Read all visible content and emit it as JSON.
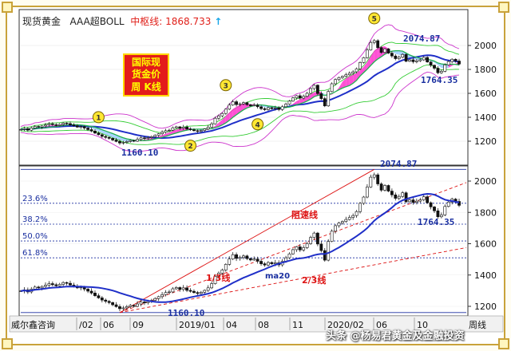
{
  "header": {
    "symbol": "现货黄金",
    "indicator": "AAA超BOLL",
    "center_label": "中枢线: 1868.733",
    "arrow": "↑"
  },
  "title_box": {
    "lines": [
      "国际现",
      "货金价",
      "周  K线"
    ]
  },
  "watermark": "头条 @杨易君黄金及金融投资",
  "chart_data": {
    "type": "candlestick",
    "xtick_labels": [
      "威尔鑫咨询",
      "/02",
      "06",
      "09",
      "2019/01",
      "04",
      "08",
      "11",
      "2020/02",
      "06",
      "10",
      "周线"
    ],
    "y_ticks_top": [
      1200,
      1400,
      1600,
      1800,
      2000
    ],
    "y_ticks_bottom": [
      1200,
      1400,
      1600,
      1800,
      2000
    ],
    "ylim": [
      1120,
      2120
    ],
    "extremes": {
      "high": 2074.87,
      "low": 1160.1,
      "recent_low": 1764.35
    },
    "high_label": "2074.87",
    "low_label": "1160.10",
    "recent_low_label": "1764.35",
    "wave_markers": [
      "1",
      "2",
      "3",
      "4",
      "5"
    ],
    "fib_levels": [
      {
        "label": "23.6%",
        "value": 1858.3
      },
      {
        "label": "38.2%",
        "value": 1724.7
      },
      {
        "label": "50.0%",
        "value": 1617.5
      },
      {
        "label": "61.8%",
        "value": 1509.8
      }
    ],
    "fan_labels": [
      "阻速线",
      "1/3线",
      "2/3线"
    ],
    "ma_label": "ma20",
    "series": [
      {
        "name": "weekly_close",
        "values": [
          1298,
          1305,
          1292,
          1310,
          1323,
          1318,
          1327,
          1335,
          1345,
          1338,
          1331,
          1340,
          1352,
          1347,
          1336,
          1329,
          1318,
          1322,
          1310,
          1297,
          1285,
          1268,
          1254,
          1240,
          1232,
          1224,
          1210,
          1198,
          1185,
          1190,
          1198,
          1206,
          1200,
          1215,
          1228,
          1222,
          1230,
          1238,
          1250,
          1262,
          1275,
          1288,
          1292,
          1312,
          1320,
          1308,
          1318,
          1302,
          1296,
          1288,
          1282,
          1290,
          1302,
          1318,
          1345,
          1392,
          1412,
          1432,
          1468,
          1502,
          1530,
          1506,
          1512,
          1522,
          1505,
          1496,
          1502,
          1488,
          1472,
          1464,
          1480,
          1472,
          1478,
          1465,
          1488,
          1510,
          1535,
          1562,
          1580,
          1560,
          1575,
          1600,
          1640,
          1668,
          1598,
          1556,
          1495,
          1615,
          1680,
          1715,
          1732,
          1742,
          1755,
          1768,
          1780,
          1805,
          1858,
          1898,
          1962,
          2025,
          2040,
          1982,
          1942,
          1972,
          1936,
          1912,
          1890,
          1902,
          1925,
          1868,
          1880,
          1864,
          1872,
          1880,
          1900,
          1862,
          1835,
          1810,
          1772,
          1784,
          1838,
          1866,
          1885,
          1870,
          1845
        ]
      }
    ]
  }
}
